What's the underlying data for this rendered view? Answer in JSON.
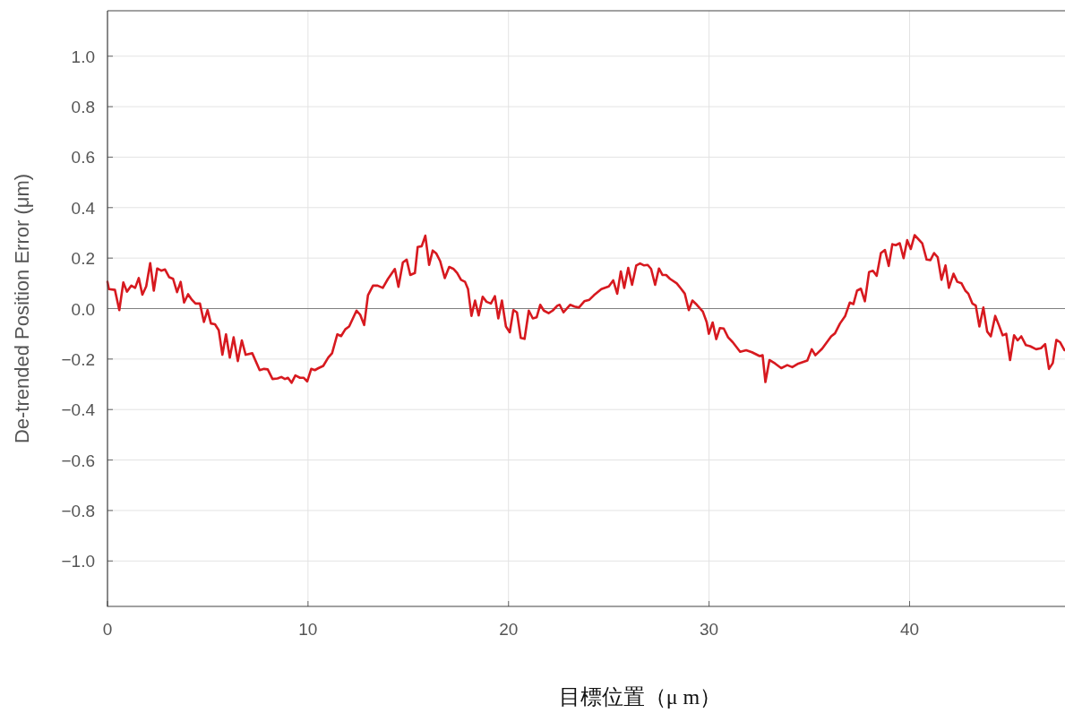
{
  "chart_data": {
    "type": "line",
    "ylabel": "De-trended Position Error (μm)",
    "xlabel": "目標位置（μ m）",
    "xlim": [
      0,
      47.75
    ],
    "ylim": [
      -1.18,
      1.18
    ],
    "xticks": [
      0,
      10,
      20,
      30,
      40
    ],
    "yticks": [
      {
        "value": -1.0,
        "label": "−1.0"
      },
      {
        "value": -0.8,
        "label": "−0.8"
      },
      {
        "value": -0.6,
        "label": "−0.6"
      },
      {
        "value": -0.4,
        "label": "−0.4"
      },
      {
        "value": -0.2,
        "label": "−0.2"
      },
      {
        "value": 0,
        "label": "0.0"
      },
      {
        "value": 0.2,
        "label": "0.2"
      },
      {
        "value": 0.4,
        "label": "0.4"
      },
      {
        "value": 0.6,
        "label": "0.6"
      },
      {
        "value": 0.8,
        "label": "0.8"
      },
      {
        "value": 1.0,
        "label": "1.0"
      }
    ],
    "grid": true,
    "ref_lines": [
      {
        "axis": "y",
        "value": 0,
        "color": "#808080"
      }
    ],
    "series": [
      {
        "color": "#d7191f",
        "x": [
          0,
          0.07,
          0.37,
          0.59,
          0.79,
          0.97,
          1.19,
          1.38,
          1.56,
          1.74,
          1.93,
          2.13,
          2.31,
          2.48,
          2.68,
          2.87,
          3.08,
          3.27,
          3.47,
          3.65,
          3.82,
          4.02,
          4.21,
          4.39,
          4.61,
          4.81,
          4.99,
          5.16,
          5.36,
          5.55,
          5.73,
          5.91,
          6.1,
          6.29,
          6.5,
          6.7,
          6.89,
          7.22,
          7.59,
          7.81,
          7.99,
          8.23,
          8.48,
          8.67,
          8.85,
          9.0,
          9.18,
          9.37,
          9.6,
          9.78,
          9.96,
          10.16,
          10.34,
          10.52,
          10.76,
          11.01,
          11.2,
          11.46,
          11.65,
          11.86,
          12.05,
          12.42,
          12.6,
          12.8,
          12.99,
          13.24,
          13.47,
          13.73,
          13.99,
          14.33,
          14.51,
          14.73,
          14.92,
          15.1,
          15.33,
          15.47,
          15.67,
          15.85,
          16.04,
          16.22,
          16.4,
          16.59,
          16.82,
          17.04,
          17.26,
          17.44,
          17.63,
          17.83,
          17.98,
          18.15,
          18.33,
          18.51,
          18.71,
          18.9,
          19.12,
          19.32,
          19.49,
          19.67,
          19.87,
          20.06,
          20.24,
          20.42,
          20.61,
          20.8,
          21.01,
          21.21,
          21.4,
          21.58,
          21.76,
          22.0,
          22.2,
          22.44,
          22.55,
          22.74,
          23.07,
          23.29,
          23.51,
          23.78,
          24.03,
          24.26,
          24.63,
          25.0,
          25.22,
          25.42,
          25.6,
          25.77,
          25.97,
          26.16,
          26.37,
          26.56,
          26.76,
          26.94,
          27.11,
          27.31,
          27.5,
          27.68,
          27.86,
          28.05,
          28.39,
          28.6,
          28.79,
          28.99,
          29.17,
          29.39,
          29.69,
          29.88,
          29.99,
          30.18,
          30.36,
          30.54,
          30.73,
          30.95,
          31.18,
          31.55,
          31.85,
          32.14,
          32.52,
          32.67,
          32.81,
          33.01,
          33.3,
          33.6,
          33.9,
          34.15,
          34.45,
          34.9,
          35.12,
          35.3,
          35.64,
          36.09,
          36.28,
          36.53,
          36.79,
          37.02,
          37.2,
          37.38,
          37.57,
          37.77,
          37.98,
          38.17,
          38.36,
          38.57,
          38.77,
          38.96,
          39.14,
          39.31,
          39.51,
          39.7,
          39.88,
          40.06,
          40.25,
          40.63,
          40.85,
          41.04,
          41.22,
          41.4,
          41.59,
          41.79,
          41.96,
          42.19,
          42.38,
          42.59,
          42.78,
          42.93,
          43.13,
          43.3,
          43.48,
          43.68,
          43.87,
          44.05,
          44.27,
          44.46,
          44.64,
          44.82,
          45.01,
          45.21,
          45.39,
          45.57,
          45.8,
          46.01,
          46.31,
          46.55,
          46.76,
          46.95,
          47.14,
          47.32,
          47.5,
          47.72
        ],
        "values": [
          0.106,
          0.077,
          0.074,
          -0.006,
          0.104,
          0.067,
          0.091,
          0.082,
          0.121,
          0.055,
          0.088,
          0.18,
          0.071,
          0.159,
          0.15,
          0.155,
          0.124,
          0.118,
          0.065,
          0.106,
          0.024,
          0.057,
          0.035,
          0.02,
          0.02,
          -0.053,
          -0.006,
          -0.059,
          -0.062,
          -0.086,
          -0.183,
          -0.102,
          -0.194,
          -0.114,
          -0.208,
          -0.126,
          -0.183,
          -0.177,
          -0.244,
          -0.239,
          -0.241,
          -0.279,
          -0.277,
          -0.271,
          -0.279,
          -0.274,
          -0.294,
          -0.265,
          -0.274,
          -0.274,
          -0.289,
          -0.239,
          -0.244,
          -0.236,
          -0.227,
          -0.194,
          -0.177,
          -0.102,
          -0.109,
          -0.082,
          -0.071,
          -0.008,
          -0.024,
          -0.065,
          0.053,
          0.091,
          0.091,
          0.082,
          0.118,
          0.157,
          0.086,
          0.183,
          0.194,
          0.133,
          0.141,
          0.244,
          0.247,
          0.289,
          0.173,
          0.23,
          0.218,
          0.188,
          0.121,
          0.165,
          0.157,
          0.141,
          0.114,
          0.106,
          0.077,
          -0.029,
          0.032,
          -0.027,
          0.047,
          0.027,
          0.02,
          0.049,
          -0.039,
          0.032,
          -0.071,
          -0.094,
          -0.006,
          -0.015,
          -0.116,
          -0.12,
          -0.008,
          -0.039,
          -0.035,
          0.015,
          -0.008,
          -0.018,
          -0.008,
          0.012,
          0.015,
          -0.015,
          0.015,
          0.008,
          0.004,
          0.029,
          0.035,
          0.053,
          0.077,
          0.088,
          0.112,
          0.059,
          0.147,
          0.082,
          0.161,
          0.094,
          0.171,
          0.179,
          0.171,
          0.173,
          0.157,
          0.094,
          0.159,
          0.133,
          0.133,
          0.118,
          0.1,
          0.079,
          0.059,
          -0.006,
          0.032,
          0.015,
          -0.012,
          -0.053,
          -0.1,
          -0.055,
          -0.121,
          -0.077,
          -0.079,
          -0.114,
          -0.133,
          -0.171,
          -0.165,
          -0.173,
          -0.188,
          -0.185,
          -0.291,
          -0.204,
          -0.218,
          -0.236,
          -0.224,
          -0.232,
          -0.218,
          -0.206,
          -0.161,
          -0.185,
          -0.159,
          -0.11,
          -0.098,
          -0.059,
          -0.029,
          0.024,
          0.018,
          0.071,
          0.079,
          0.029,
          0.145,
          0.15,
          0.13,
          0.22,
          0.232,
          0.169,
          0.255,
          0.251,
          0.259,
          0.2,
          0.271,
          0.236,
          0.291,
          0.259,
          0.194,
          0.192,
          0.22,
          0.204,
          0.114,
          0.171,
          0.082,
          0.138,
          0.106,
          0.1,
          0.071,
          0.059,
          0.02,
          0.012,
          -0.071,
          0.004,
          -0.091,
          -0.11,
          -0.029,
          -0.067,
          -0.106,
          -0.1,
          -0.204,
          -0.106,
          -0.126,
          -0.11,
          -0.145,
          -0.149,
          -0.161,
          -0.157,
          -0.141,
          -0.239,
          -0.216,
          -0.124,
          -0.133,
          -0.165
        ]
      }
    ]
  }
}
